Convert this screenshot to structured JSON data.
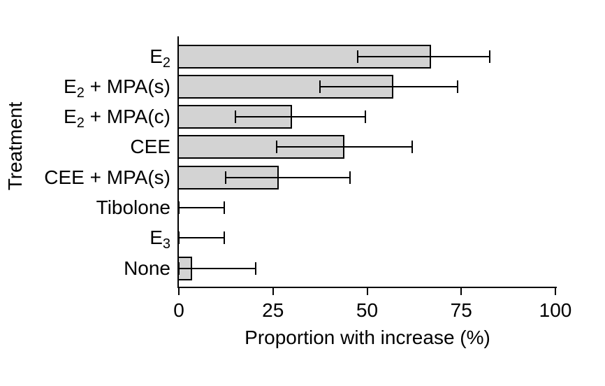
{
  "chart_data": {
    "type": "bar",
    "orientation": "horizontal",
    "title": "",
    "xlabel": "Proportion with increase (%)",
    "ylabel": "Treatment",
    "xlim": [
      0,
      100
    ],
    "grid": false,
    "legend": false,
    "bar_fill_color": "#d3d3d3",
    "bar_border_color": "#000000",
    "error_bar_color": "#000000",
    "xticks": [
      {
        "value": 0,
        "label": "0"
      },
      {
        "value": 25,
        "label": "25"
      },
      {
        "value": 50,
        "label": "50"
      },
      {
        "value": 75,
        "label": "75"
      },
      {
        "value": 100,
        "label": "100"
      }
    ],
    "rows": [
      {
        "label": "E2",
        "label_parts": [
          {
            "text": "E"
          },
          {
            "text": "2",
            "sub": true
          }
        ],
        "value": 67,
        "ci_low": 47.5,
        "ci_high": 82.5
      },
      {
        "label": "E2 + MPA(s)",
        "label_parts": [
          {
            "text": "E"
          },
          {
            "text": "2",
            "sub": true
          },
          {
            "text": " + MPA(s)"
          }
        ],
        "value": 57,
        "ci_low": 37.5,
        "ci_high": 74
      },
      {
        "label": "E2 + MPA(c)",
        "label_parts": [
          {
            "text": "E"
          },
          {
            "text": "2",
            "sub": true
          },
          {
            "text": " + MPA(c)"
          }
        ],
        "value": 30,
        "ci_low": 15,
        "ci_high": 49.5
      },
      {
        "label": "CEE",
        "label_parts": [
          {
            "text": "CEE"
          }
        ],
        "value": 44,
        "ci_low": 26,
        "ci_high": 62
      },
      {
        "label": "CEE + MPA(s)",
        "label_parts": [
          {
            "text": "CEE + MPA(s)"
          }
        ],
        "value": 26.5,
        "ci_low": 12.5,
        "ci_high": 45.5
      },
      {
        "label": "Tibolone",
        "label_parts": [
          {
            "text": "Tibolone"
          }
        ],
        "value": 0,
        "ci_low": 0,
        "ci_high": 12
      },
      {
        "label": "E3",
        "label_parts": [
          {
            "text": "E"
          },
          {
            "text": "3",
            "sub": true
          }
        ],
        "value": 0,
        "ci_low": 0,
        "ci_high": 12
      },
      {
        "label": "None",
        "label_parts": [
          {
            "text": "None"
          }
        ],
        "value": 3.5,
        "ci_low": 0,
        "ci_high": 20.5
      }
    ]
  }
}
